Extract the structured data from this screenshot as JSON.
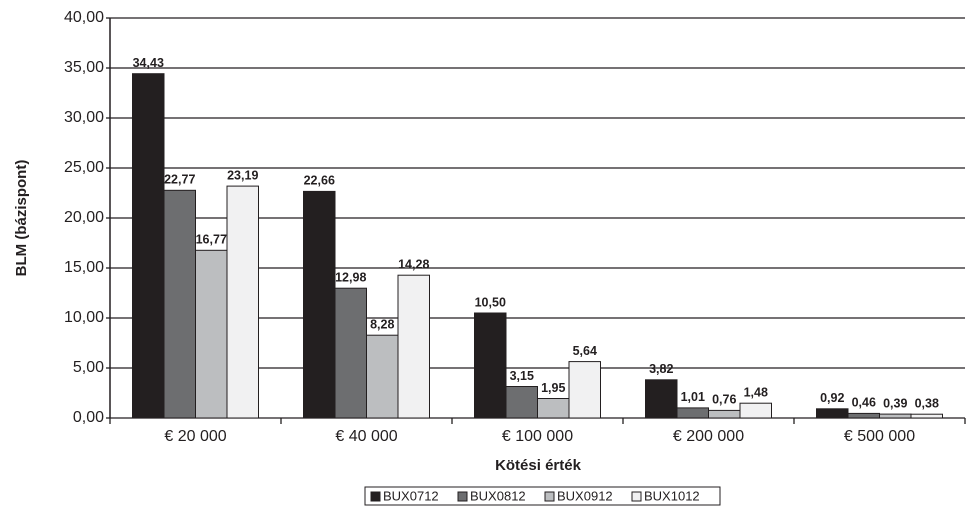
{
  "chart_data": {
    "type": "bar",
    "x_label": "Kötési érték",
    "y_label": "BLM  (bázispont)",
    "categories": [
      "€ 20 000",
      "€ 40 000",
      "€ 100 000",
      "€ 200 000",
      "€ 500 000"
    ],
    "series": [
      {
        "name": "BUX0712",
        "color": "#231f20",
        "values": [
          34.43,
          22.66,
          10.5,
          3.82,
          0.92
        ],
        "value_labels": [
          "34,43",
          "22,66",
          "10,50",
          "3,82",
          "0,92"
        ]
      },
      {
        "name": "BUX0812",
        "color": "#6d6e70",
        "values": [
          22.77,
          12.98,
          3.15,
          1.01,
          0.46
        ],
        "value_labels": [
          "22,77",
          "12,98",
          "3,15",
          "1,01",
          "0,46"
        ]
      },
      {
        "name": "BUX0912",
        "color": "#bcbec0",
        "values": [
          16.77,
          8.28,
          1.95,
          0.76,
          0.39
        ],
        "value_labels": [
          "16,77",
          "8,28",
          "1,95",
          "0,76",
          "0,39"
        ]
      },
      {
        "name": "BUX1012",
        "color": "#f1f1f2",
        "values": [
          23.19,
          14.28,
          5.64,
          1.48,
          0.38
        ],
        "value_labels": [
          "23,19",
          "14,28",
          "5,64",
          "1,48",
          "0,38"
        ]
      }
    ],
    "ylim": [
      0,
      40
    ],
    "yticks": [
      {
        "value": 0,
        "label": "0,00"
      },
      {
        "value": 5,
        "label": "5,00"
      },
      {
        "value": 10,
        "label": "10,00"
      },
      {
        "value": 15,
        "label": "15,00"
      },
      {
        "value": 20,
        "label": "20,00"
      },
      {
        "value": 25,
        "label": "25,00"
      },
      {
        "value": 30,
        "label": "30,00"
      },
      {
        "value": 35,
        "label": "35,00"
      },
      {
        "value": 40,
        "label": "40,00"
      }
    ],
    "grid": true,
    "legend": "bottom"
  }
}
